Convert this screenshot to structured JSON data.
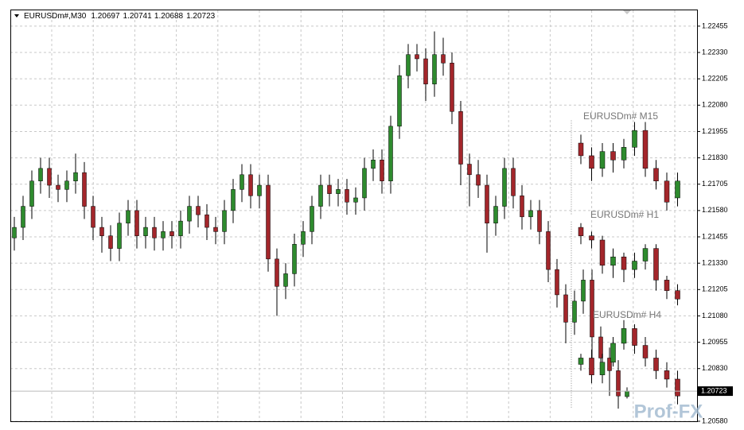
{
  "chart_data": {
    "type": "candlestick",
    "symbol": "EURUSDm#,M30",
    "bull_color": "#2e8b2e",
    "bear_color": "#a3262b",
    "grid": true,
    "ylim": [
      1.2058,
      1.2253
    ],
    "yticks": [
      1.22455,
      {
        "value": 1.2233,
        "label": "1.22330"
      },
      1.22205,
      {
        "value": 1.2208,
        "label": "1.22080"
      },
      1.21955,
      {
        "value": 1.2183,
        "label": "1.21830"
      },
      1.21705,
      {
        "value": 1.2158,
        "label": "1.21580"
      },
      1.21455,
      {
        "value": 1.2133,
        "label": "1.21330"
      },
      1.21205,
      {
        "value": 1.2108,
        "label": "1.21080"
      },
      1.20955,
      {
        "value": 1.2083,
        "label": "1.20830"
      },
      {
        "value": 1.2058,
        "label": "1.20580"
      }
    ],
    "open": [
      1.2145,
      1.215,
      1.216,
      1.2172,
      1.2178,
      1.217,
      1.2168,
      1.2172,
      1.2176,
      1.216,
      1.215,
      1.2146,
      1.214,
      1.2152,
      1.2158,
      1.2146,
      1.215,
      1.2145,
      1.2148,
      1.2146,
      1.2153,
      1.216,
      1.2156,
      1.215,
      1.2148,
      1.2158,
      1.2168,
      1.2175,
      1.2165,
      1.217,
      1.2135,
      1.2122,
      1.2128,
      1.2142,
      1.2148,
      1.216,
      1.217,
      1.2166,
      1.2168,
      1.2162,
      1.2164,
      1.2178,
      1.2182,
      1.2172,
      1.2198,
      1.2222,
      1.2232,
      1.223,
      1.2218,
      1.2232,
      1.2228,
      1.2205,
      1.218,
      1.2175,
      1.217,
      1.2152,
      1.216,
      1.2178,
      1.2165,
      1.2155,
      1.2158,
      1.2148,
      1.213,
      1.2118,
      1.2105,
      1.2115,
      1.2125,
      1.2098,
      1.2088,
      1.2082,
      1.20697
    ],
    "high": [
      1.2155,
      1.2165,
      1.2177,
      1.2183,
      1.2183,
      1.2175,
      1.2177,
      1.2185,
      1.2181,
      1.2165,
      1.2155,
      1.2151,
      1.2157,
      1.2163,
      1.2163,
      1.2155,
      1.2155,
      1.2153,
      1.2153,
      1.2158,
      1.2165,
      1.2165,
      1.2161,
      1.2155,
      1.2163,
      1.2173,
      1.218,
      1.218,
      1.2175,
      1.2175,
      1.214,
      1.2133,
      1.2147,
      1.2153,
      1.2165,
      1.2175,
      1.2175,
      1.2173,
      1.2173,
      1.2169,
      1.2183,
      1.2187,
      1.2187,
      1.2203,
      1.2227,
      1.2237,
      1.2237,
      1.2235,
      1.2243,
      1.224,
      1.2233,
      1.221,
      1.2185,
      1.2182,
      1.2175,
      1.2165,
      1.2183,
      1.2183,
      1.217,
      1.2163,
      1.2163,
      1.2153,
      1.2135,
      1.2123,
      1.212,
      1.213,
      1.213,
      1.2103,
      1.2093,
      1.2087,
      1.20741
    ],
    "low": [
      1.2139,
      1.2144,
      1.2154,
      1.2166,
      1.2164,
      1.2162,
      1.2162,
      1.2166,
      1.2154,
      1.2144,
      1.2138,
      1.2134,
      1.2134,
      1.2146,
      1.214,
      1.214,
      1.2139,
      1.2139,
      1.214,
      1.214,
      1.2147,
      1.215,
      1.2144,
      1.2142,
      1.2142,
      1.2152,
      1.2162,
      1.2159,
      1.2159,
      1.2129,
      1.2108,
      1.2116,
      1.2122,
      1.2136,
      1.2142,
      1.2154,
      1.216,
      1.216,
      1.2156,
      1.2156,
      1.2158,
      1.2172,
      1.2166,
      1.2166,
      1.2192,
      1.2216,
      1.2224,
      1.221,
      1.2212,
      1.2222,
      1.2199,
      1.217,
      1.216,
      1.2164,
      1.2138,
      1.2146,
      1.2154,
      1.2159,
      1.2149,
      1.2149,
      1.2142,
      1.2124,
      1.2112,
      1.2095,
      1.2099,
      1.2109,
      1.2085,
      1.2082,
      1.207,
      1.2064,
      1.20688
    ],
    "close": [
      1.215,
      1.216,
      1.2172,
      1.2178,
      1.217,
      1.2168,
      1.2172,
      1.2176,
      1.216,
      1.215,
      1.2146,
      1.214,
      1.2152,
      1.2158,
      1.2146,
      1.215,
      1.2145,
      1.2148,
      1.2146,
      1.2153,
      1.216,
      1.2156,
      1.215,
      1.2148,
      1.2158,
      1.2168,
      1.2175,
      1.2165,
      1.217,
      1.2135,
      1.2122,
      1.2128,
      1.2142,
      1.2148,
      1.216,
      1.217,
      1.2166,
      1.2168,
      1.2162,
      1.2164,
      1.2178,
      1.2182,
      1.2172,
      1.2198,
      1.2222,
      1.2232,
      1.223,
      1.2218,
      1.2232,
      1.2228,
      1.2205,
      1.218,
      1.2175,
      1.217,
      1.2152,
      1.216,
      1.2178,
      1.2165,
      1.2155,
      1.2158,
      1.2148,
      1.213,
      1.2118,
      1.2105,
      1.2115,
      1.2125,
      1.2098,
      1.2088,
      1.2082,
      1.207,
      1.20723
    ],
    "overlays": [
      {
        "name": "EURUSDm# M15",
        "open": [
          1.219,
          1.2184,
          1.2178,
          1.2186,
          1.2182,
          1.2188,
          1.2196,
          1.2178,
          1.2172,
          1.2164
        ],
        "high": [
          1.2194,
          1.2188,
          1.219,
          1.219,
          1.2192,
          1.22,
          1.22,
          1.2182,
          1.2176,
          1.2176
        ],
        "low": [
          1.218,
          1.2172,
          1.2174,
          1.2176,
          1.2178,
          1.2184,
          1.2174,
          1.2168,
          1.2158,
          1.216
        ],
        "close": [
          1.2184,
          1.2178,
          1.2186,
          1.2182,
          1.2188,
          1.2196,
          1.2178,
          1.2172,
          1.2162,
          1.2172
        ]
      },
      {
        "name": "EURUSDm# H1",
        "open": [
          1.215,
          1.2146,
          1.2144,
          1.2132,
          1.2136,
          1.213,
          1.2134,
          1.214,
          1.2125,
          1.212
        ],
        "high": [
          1.2152,
          1.2148,
          1.2146,
          1.214,
          1.2138,
          1.2138,
          1.2142,
          1.2142,
          1.2127,
          1.2123
        ],
        "low": [
          1.2142,
          1.214,
          1.2128,
          1.2126,
          1.2124,
          1.2126,
          1.213,
          1.212,
          1.2116,
          1.2113
        ],
        "close": [
          1.2146,
          1.2144,
          1.2132,
          1.2136,
          1.213,
          1.2134,
          1.214,
          1.2125,
          1.212,
          1.2116
        ]
      },
      {
        "name": "EURUSDm# H4",
        "open": [
          1.2085,
          1.2088,
          1.208,
          1.2086,
          1.2095,
          1.2102,
          1.2094,
          1.2088,
          1.2082,
          1.2078
        ],
        "high": [
          1.209,
          1.2092,
          1.209,
          1.2098,
          1.2106,
          1.2104,
          1.2098,
          1.2092,
          1.2086,
          1.2082
        ],
        "low": [
          1.2082,
          1.2076,
          1.2076,
          1.2084,
          1.2092,
          1.209,
          1.2084,
          1.2078,
          1.2074,
          1.2066
        ],
        "close": [
          1.2088,
          1.208,
          1.2086,
          1.2095,
          1.2102,
          1.2094,
          1.2088,
          1.2082,
          1.2078,
          1.207
        ]
      }
    ],
    "watermark": "Prof-FX"
  }
}
